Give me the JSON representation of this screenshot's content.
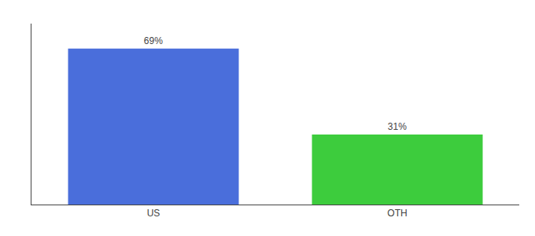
{
  "chart_data": {
    "type": "bar",
    "categories": [
      "US",
      "OTH"
    ],
    "values": [
      69,
      31
    ],
    "value_labels": [
      "69%",
      "31%"
    ],
    "colors": [
      "#4a6edb",
      "#3dcc3d"
    ],
    "data_labels": true,
    "ylim": [
      0,
      80
    ],
    "grid": false,
    "tick_labels": "x"
  }
}
